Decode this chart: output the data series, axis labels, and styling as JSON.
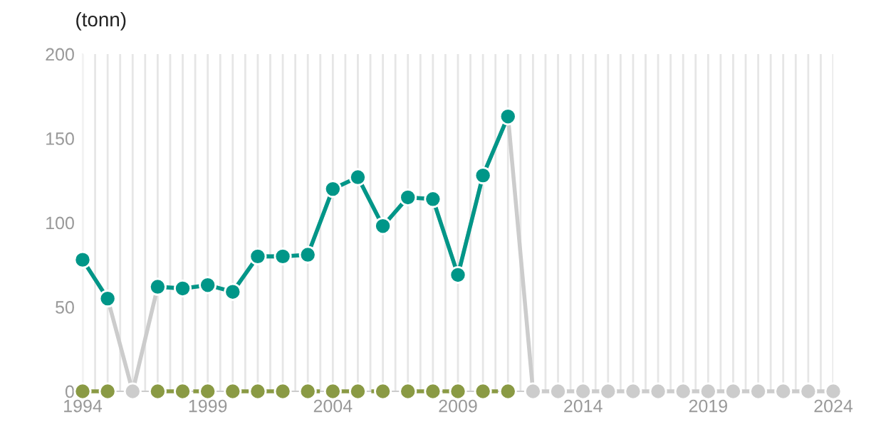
{
  "chart_data": {
    "type": "line",
    "ylabel": "(tonn)",
    "x": [
      1994,
      1995,
      1996,
      1997,
      1998,
      1999,
      2000,
      2001,
      2002,
      2003,
      2004,
      2005,
      2006,
      2007,
      2008,
      2009,
      2010,
      2011,
      2012,
      2013,
      2014,
      2015,
      2016,
      2017,
      2018,
      2019,
      2020,
      2021,
      2022,
      2023,
      2024
    ],
    "series": [
      {
        "color": "#cccccc",
        "line_style": "solid",
        "values": [
          78,
          55,
          0,
          62,
          61,
          63,
          59,
          80,
          80,
          81,
          120,
          127,
          98,
          115,
          114,
          69,
          128,
          163,
          0,
          0,
          0,
          0,
          0,
          0,
          0,
          0,
          0,
          0,
          0,
          0,
          0
        ]
      },
      {
        "color": "#009688",
        "line_style": "solid",
        "values": [
          78,
          55,
          null,
          62,
          61,
          63,
          59,
          80,
          80,
          81,
          120,
          127,
          98,
          115,
          114,
          69,
          128,
          163,
          null,
          null,
          null,
          null,
          null,
          null,
          null,
          null,
          null,
          null,
          null,
          null,
          null
        ]
      },
      {
        "color": "#8a9a44",
        "line_style": "dashed",
        "values": [
          0,
          0,
          null,
          0,
          0,
          0,
          0,
          0,
          0,
          0,
          0,
          0,
          0,
          0,
          0,
          0,
          0,
          0,
          null,
          null,
          null,
          null,
          null,
          null,
          null,
          null,
          null,
          null,
          null,
          null,
          null
        ]
      }
    ],
    "marker": "circle",
    "grid": "x",
    "xlim": [
      1994,
      2024
    ],
    "xticks": [
      1994,
      {
        "value": 1994.5,
        "label": null
      },
      {
        "value": 1995,
        "label": null
      },
      {
        "value": 1995.5,
        "label": null
      },
      {
        "value": 1996,
        "label": null
      },
      {
        "value": 1996.5,
        "label": null
      },
      {
        "value": 1997,
        "label": null
      },
      {
        "value": 1997.5,
        "label": null
      },
      {
        "value": 1998,
        "label": null
      },
      {
        "value": 1998.5,
        "label": null
      },
      1999,
      {
        "value": 1999.5,
        "label": null
      },
      {
        "value": 2000,
        "label": null
      },
      {
        "value": 2000.5,
        "label": null
      },
      {
        "value": 2001,
        "label": null
      },
      {
        "value": 2001.5,
        "label": null
      },
      {
        "value": 2002,
        "label": null
      },
      {
        "value": 2002.5,
        "label": null
      },
      {
        "value": 2003,
        "label": null
      },
      {
        "value": 2003.5,
        "label": null
      },
      2004,
      {
        "value": 2004.5,
        "label": null
      },
      {
        "value": 2005,
        "label": null
      },
      {
        "value": 2005.5,
        "label": null
      },
      {
        "value": 2006,
        "label": null
      },
      {
        "value": 2006.5,
        "label": null
      },
      {
        "value": 2007,
        "label": null
      },
      {
        "value": 2007.5,
        "label": null
      },
      {
        "value": 2008,
        "label": null
      },
      {
        "value": 2008.5,
        "label": null
      },
      2009,
      {
        "value": 2009.5,
        "label": null
      },
      {
        "value": 2010,
        "label": null
      },
      {
        "value": 2010.5,
        "label": null
      },
      {
        "value": 2011,
        "label": null
      },
      {
        "value": 2011.5,
        "label": null
      },
      {
        "value": 2012,
        "label": null
      },
      {
        "value": 2012.5,
        "label": null
      },
      {
        "value": 2013,
        "label": null
      },
      {
        "value": 2013.5,
        "label": null
      },
      2014,
      {
        "value": 2014.5,
        "label": null
      },
      {
        "value": 2015,
        "label": null
      },
      {
        "value": 2015.5,
        "label": null
      },
      {
        "value": 2016,
        "label": null
      },
      {
        "value": 2016.5,
        "label": null
      },
      {
        "value": 2017,
        "label": null
      },
      {
        "value": 2017.5,
        "label": null
      },
      {
        "value": 2018,
        "label": null
      },
      {
        "value": 2018.5,
        "label": null
      },
      2019,
      {
        "value": 2019.5,
        "label": null
      },
      {
        "value": 2020,
        "label": null
      },
      {
        "value": 2020.5,
        "label": null
      },
      {
        "value": 2021,
        "label": null
      },
      {
        "value": 2021.5,
        "label": null
      },
      {
        "value": 2022,
        "label": null
      },
      {
        "value": 2022.5,
        "label": null
      },
      {
        "value": 2023,
        "label": null
      },
      {
        "value": 2023.5,
        "label": null
      },
      2024
    ],
    "ylim": [
      0,
      200
    ],
    "yticks": [
      0,
      50,
      100,
      150,
      200
    ]
  }
}
